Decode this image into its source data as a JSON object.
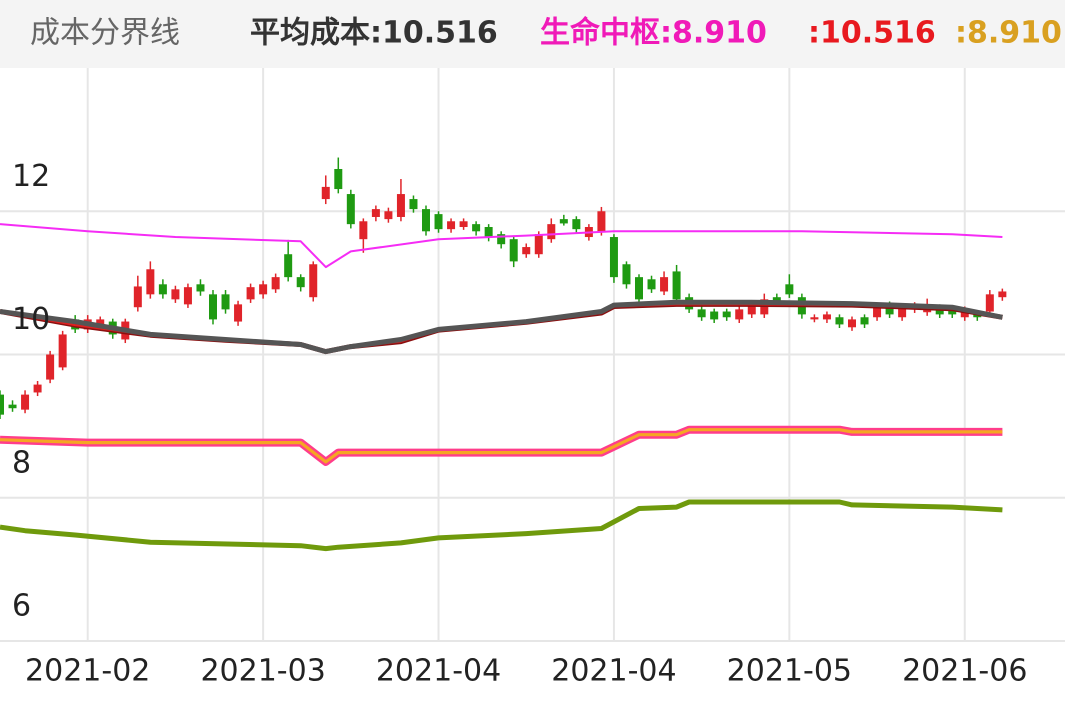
{
  "chart_data": {
    "type": "candlestick",
    "title": "成本分界线",
    "legend": [
      {
        "text": "平均成本:10.516",
        "color": "#333333"
      },
      {
        "text": "生命中枢:8.910",
        "color": "#f01ab8"
      },
      {
        "text": ":10.516",
        "color": "#e8191f"
      },
      {
        "text": ":8.910",
        "color": "#d9a020"
      }
    ],
    "xlim": [
      0,
      85
    ],
    "xticks": [
      {
        "value": 7,
        "label": "2021-02"
      },
      {
        "value": 21,
        "label": "2021-03"
      },
      {
        "value": 35,
        "label": "2021-04"
      },
      {
        "value": 49,
        "label": "2021-04"
      },
      {
        "value": 63,
        "label": "2021-05"
      },
      {
        "value": 77,
        "label": "2021-06"
      }
    ],
    "ylim": [
      6,
      14
    ],
    "yticks": [
      6,
      8,
      10,
      12
    ],
    "grid": true,
    "up_color": "#e0242a",
    "down_color": "#1f9a12",
    "open": [
      9.44,
      9.3,
      9.23,
      9.47,
      9.65,
      9.82,
      10.49,
      10.35,
      10.42,
      10.46,
      10.21,
      10.66,
      10.84,
      10.98,
      10.77,
      10.7,
      10.98,
      10.84,
      10.84,
      10.46,
      10.77,
      10.84,
      10.91,
      11.4,
      11.08,
      10.8,
      12.17,
      12.59,
      12.24,
      11.61,
      11.92,
      11.89,
      11.92,
      12.17,
      12.03,
      11.96,
      11.75,
      11.78,
      11.82,
      11.78,
      11.68,
      11.61,
      11.4,
      11.4,
      11.61,
      11.89,
      11.89,
      11.64,
      11.72,
      11.64,
      11.26,
      11.08,
      11.05,
      10.88,
      11.16,
      10.8,
      10.63,
      10.6,
      10.6,
      10.49,
      10.56,
      10.56,
      10.8,
      10.98,
      10.8,
      10.49,
      10.49,
      10.52,
      10.38,
      10.52,
      10.52,
      10.7,
      10.52,
      10.63,
      10.59,
      10.66,
      10.63,
      10.52,
      10.56,
      10.6,
      10.8
    ],
    "close": [
      9.16,
      9.25,
      9.44,
      9.58,
      10.0,
      10.28,
      10.35,
      10.49,
      10.49,
      10.28,
      10.46,
      10.95,
      11.19,
      10.84,
      10.91,
      10.94,
      10.88,
      10.49,
      10.63,
      10.7,
      10.94,
      10.98,
      11.08,
      11.08,
      10.94,
      11.26,
      12.34,
      12.31,
      11.82,
      11.86,
      12.03,
      12.0,
      12.24,
      12.03,
      11.72,
      11.75,
      11.86,
      11.86,
      11.72,
      11.64,
      11.54,
      11.3,
      11.5,
      11.68,
      11.82,
      11.83,
      11.75,
      11.78,
      12.0,
      11.08,
      10.98,
      10.77,
      10.91,
      11.08,
      10.77,
      10.63,
      10.52,
      10.49,
      10.52,
      10.63,
      10.7,
      10.77,
      10.74,
      10.84,
      10.56,
      10.52,
      10.56,
      10.42,
      10.49,
      10.42,
      10.66,
      10.56,
      10.66,
      10.69,
      10.7,
      10.56,
      10.56,
      10.63,
      10.52,
      10.84,
      10.88
    ],
    "high": [
      9.5,
      9.36,
      9.5,
      9.63,
      10.05,
      10.33,
      10.55,
      10.55,
      10.53,
      10.5,
      10.5,
      11.1,
      11.3,
      11.05,
      10.96,
      10.99,
      11.05,
      10.9,
      10.9,
      10.75,
      10.99,
      11.03,
      11.13,
      11.6,
      11.12,
      11.3,
      12.5,
      12.75,
      12.3,
      11.9,
      12.08,
      12.05,
      12.45,
      12.22,
      12.08,
      12.0,
      11.9,
      11.9,
      11.86,
      11.82,
      11.72,
      11.65,
      11.55,
      11.72,
      11.9,
      11.95,
      11.93,
      11.82,
      12.06,
      11.68,
      11.3,
      11.12,
      11.1,
      11.16,
      11.25,
      10.85,
      10.67,
      10.64,
      10.64,
      10.67,
      10.74,
      10.85,
      10.85,
      11.12,
      10.85,
      10.56,
      10.6,
      10.56,
      10.53,
      10.56,
      10.7,
      10.74,
      10.7,
      10.73,
      10.78,
      10.7,
      10.67,
      10.67,
      10.6,
      10.9,
      10.92
    ],
    "low": [
      9.1,
      9.2,
      9.18,
      9.42,
      9.6,
      9.78,
      10.3,
      10.3,
      10.38,
      10.22,
      10.16,
      10.6,
      10.78,
      10.78,
      10.72,
      10.65,
      10.82,
      10.42,
      10.57,
      10.4,
      10.72,
      10.78,
      10.86,
      11.02,
      10.88,
      10.74,
      12.1,
      12.25,
      11.76,
      11.42,
      11.86,
      11.84,
      11.86,
      11.98,
      11.66,
      11.7,
      11.7,
      11.74,
      11.66,
      11.58,
      11.48,
      11.22,
      11.35,
      11.35,
      11.56,
      11.8,
      11.7,
      11.59,
      11.66,
      11.0,
      10.92,
      10.72,
      10.86,
      10.83,
      10.7,
      10.58,
      10.47,
      10.44,
      10.47,
      10.44,
      10.51,
      10.51,
      10.69,
      10.79,
      10.5,
      10.45,
      10.44,
      10.37,
      10.33,
      10.37,
      10.47,
      10.51,
      10.47,
      10.58,
      10.54,
      10.51,
      10.51,
      10.47,
      10.47,
      10.55,
      10.75
    ],
    "series": [
      {
        "color": "#6f9a0c",
        "width": 5,
        "x": [
          0,
          2,
          6,
          12,
          24,
          26,
          27,
          32,
          35,
          42,
          48,
          51,
          54,
          55,
          67,
          68,
          76,
          80
        ],
        "values": [
          7.59,
          7.54,
          7.48,
          7.38,
          7.33,
          7.29,
          7.31,
          7.37,
          7.44,
          7.5,
          7.57,
          7.85,
          7.87,
          7.94,
          7.94,
          7.9,
          7.87,
          7.83
        ]
      },
      {
        "color": "#f52cf5",
        "width": 2,
        "x": [
          0,
          7,
          14,
          24,
          26,
          28,
          35,
          42,
          49,
          64,
          76,
          80
        ],
        "values": [
          11.82,
          11.72,
          11.64,
          11.58,
          11.22,
          11.44,
          11.61,
          11.66,
          11.72,
          11.72,
          11.68,
          11.64
        ]
      },
      {
        "color": "#ff3d8b",
        "inner_color": "#f5a623",
        "width": 8,
        "x": [
          0,
          7,
          24,
          26,
          27,
          48,
          51,
          54,
          55,
          67,
          68,
          80
        ],
        "values": [
          8.81,
          8.77,
          8.77,
          8.5,
          8.63,
          8.63,
          8.88,
          8.88,
          8.95,
          8.95,
          8.92,
          8.92
        ]
      },
      {
        "color": "#8a1010",
        "inner_color": "#e02020",
        "width": 5,
        "x": [
          0,
          6,
          12,
          18,
          24,
          26,
          28,
          32,
          35,
          42,
          48,
          49,
          54,
          60,
          68,
          76,
          80
        ],
        "values": [
          10.6,
          10.41,
          10.27,
          10.2,
          10.14,
          10.04,
          10.11,
          10.18,
          10.34,
          10.45,
          10.58,
          10.67,
          10.7,
          10.7,
          10.69,
          10.64,
          10.52
        ]
      },
      {
        "color": "#555555",
        "width": 5,
        "x": [
          0,
          6,
          12,
          18,
          24,
          26,
          28,
          32,
          35,
          42,
          48,
          49,
          54,
          60,
          68,
          76,
          80
        ],
        "values": [
          10.6,
          10.46,
          10.28,
          10.21,
          10.14,
          10.04,
          10.11,
          10.21,
          10.35,
          10.46,
          10.6,
          10.69,
          10.73,
          10.73,
          10.71,
          10.66,
          10.52
        ]
      }
    ]
  }
}
